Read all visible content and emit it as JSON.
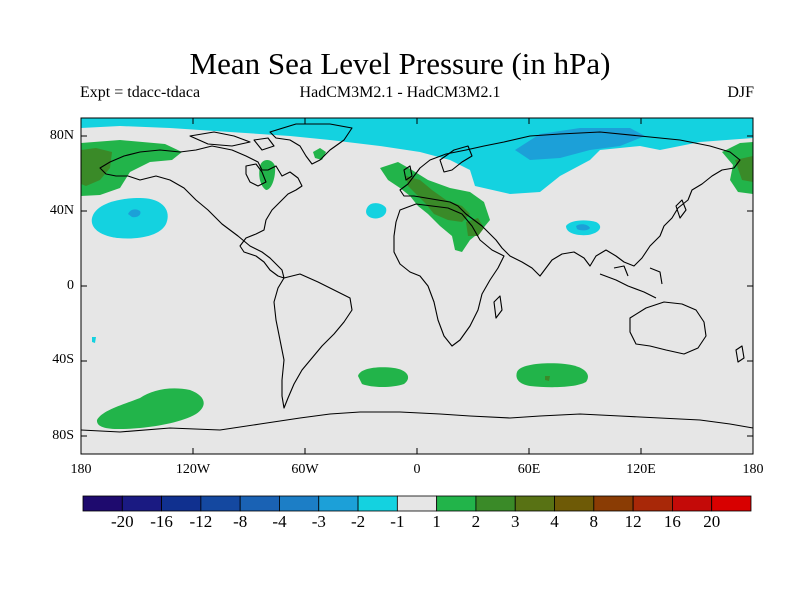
{
  "title": "Mean Sea Level Pressure (in hPa)",
  "subtitle_left": "Expt = tdacc-tdaca",
  "subtitle_center": "HadCM3M2.1 - HadCM3M2.1",
  "subtitle_right": "DJF",
  "lat_labels": [
    "80N",
    "40N",
    "0",
    "40S",
    "80S"
  ],
  "lon_labels": [
    "180",
    "120W",
    "60W",
    "0",
    "60E",
    "120E",
    "180"
  ],
  "colorbar": {
    "labels": [
      "-20",
      "-16",
      "-12",
      "-8",
      "-4",
      "-3",
      "-2",
      "-1",
      "1",
      "2",
      "3",
      "4",
      "8",
      "12",
      "16",
      "20"
    ],
    "colors": [
      "#1e0a6e",
      "#1a1a82",
      "#10308f",
      "#1448a0",
      "#1a62b4",
      "#1c7ec6",
      "#1ca0d8",
      "#14d2e0",
      "#e6e6e6",
      "#22b44a",
      "#3a8a28",
      "#587214",
      "#6e5a06",
      "#8a3c04",
      "#a82808",
      "#c40a08",
      "#d80000"
    ]
  },
  "colors": {
    "background": "#e6e6e6",
    "neg_weak": "#14d2e0",
    "neg_mid": "#1ca0d8",
    "pos_weak": "#22b44a",
    "pos_mid": "#3a8a28"
  }
}
